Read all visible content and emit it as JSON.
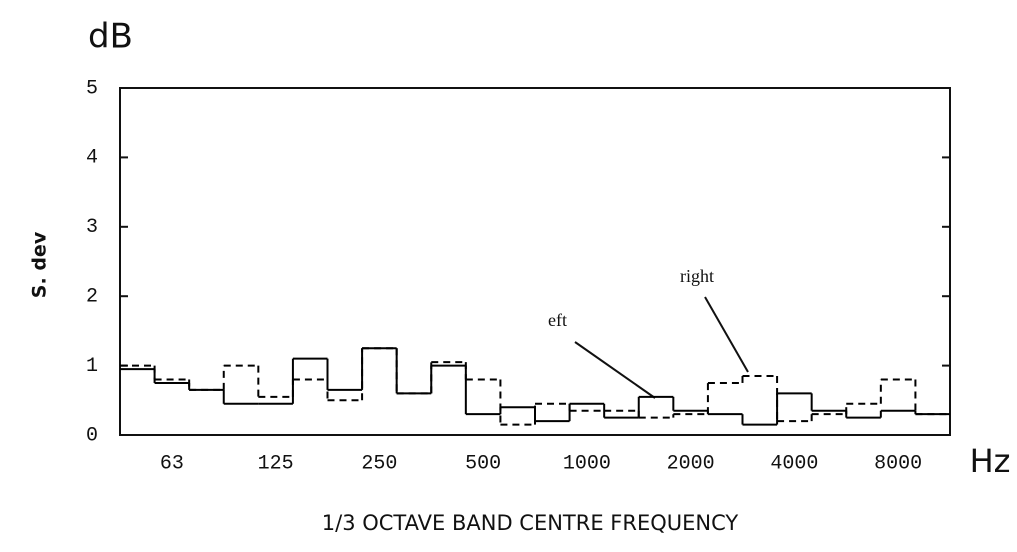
{
  "chart_data": {
    "type": "step",
    "title": "dB",
    "y_label": "S. dev",
    "x_label": "1/3 OCTAVE BAND CENTRE FREQUENCY",
    "x_unit": "Hz",
    "categories": [
      null,
      "63",
      null,
      null,
      "125",
      null,
      null,
      "250",
      null,
      null,
      "500",
      null,
      null,
      "1000",
      null,
      null,
      "2000",
      null,
      null,
      "4000",
      null,
      null,
      "8000",
      null
    ],
    "series": [
      {
        "name": "eft",
        "color": "#000000",
        "dash": false,
        "values": [
          0.95,
          0.75,
          0.65,
          0.45,
          0.45,
          1.1,
          0.65,
          1.25,
          0.6,
          1.0,
          0.3,
          0.4,
          0.2,
          0.45,
          0.25,
          0.55,
          0.35,
          0.3,
          0.15,
          0.6,
          0.35,
          0.25,
          0.35,
          0.3
        ]
      },
      {
        "name": "right",
        "color": "#000000",
        "dash": true,
        "values": [
          1.0,
          0.8,
          0.65,
          1.0,
          0.55,
          0.8,
          0.5,
          1.25,
          0.6,
          1.05,
          0.8,
          0.15,
          0.45,
          0.35,
          0.35,
          0.25,
          0.3,
          0.75,
          0.85,
          0.2,
          0.3,
          0.45,
          0.8,
          0.3
        ]
      }
    ],
    "ylim": [
      0,
      5
    ],
    "yticks": [
      0,
      1,
      2,
      3,
      4,
      5
    ],
    "grid": false
  }
}
